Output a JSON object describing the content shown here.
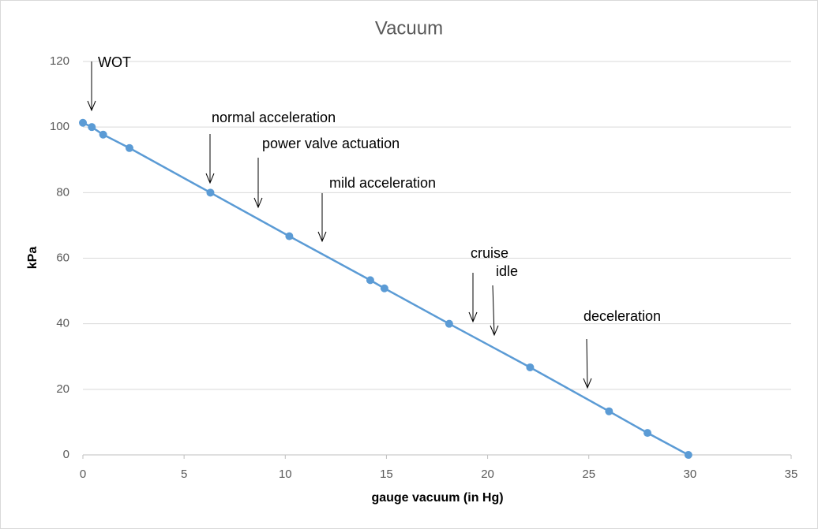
{
  "chart_data": {
    "type": "line",
    "title": "Vacuum",
    "x_label": "gauge vacuum (in Hg)",
    "y_label": "kPa",
    "x": [
      0,
      0.44,
      1,
      2.3,
      6.3,
      10.2,
      14.2,
      14.9,
      18.1,
      22.1,
      26.0,
      27.9,
      29.92
    ],
    "values": [
      101.3,
      100,
      97.7,
      93.6,
      80,
      66.7,
      53.3,
      50.8,
      40,
      26.7,
      13.3,
      6.7,
      0
    ],
    "color": "#5b9bd5",
    "xlim": [
      0,
      35
    ],
    "xticks": [
      0,
      5,
      10,
      15,
      20,
      25,
      30,
      35
    ],
    "ylim": [
      0,
      120
    ],
    "yticks": [
      0,
      20,
      40,
      60,
      80,
      100,
      120
    ],
    "grid": true,
    "annotations": [
      "WOT",
      "normal acceleration",
      "power valve actuation",
      "mild acceleration",
      "cruise",
      "idle",
      "deceleration"
    ]
  }
}
